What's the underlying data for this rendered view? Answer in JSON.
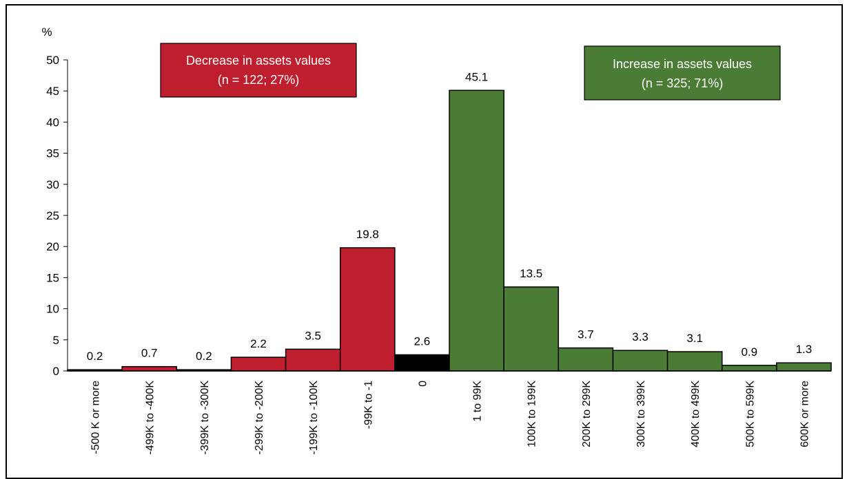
{
  "chart_data": {
    "type": "bar",
    "unit_label": "%",
    "ylim": [
      0,
      50
    ],
    "y_ticks": [
      0,
      5,
      10,
      15,
      20,
      25,
      30,
      35,
      40,
      45,
      50
    ],
    "grid": false,
    "categories": [
      "-500 K or more",
      "-499K to -400K",
      "-399K to -300K",
      "-299K to -200K",
      "-199K to -100K",
      "-99K to -1",
      "0",
      "1 to 99K",
      "100K to 199K",
      "200K to 299K",
      "300K to 399K",
      "400K to 499K",
      "500K to 599K",
      "600K or more"
    ],
    "values": [
      0.2,
      0.7,
      0.2,
      2.2,
      3.5,
      19.8,
      2.6,
      45.1,
      13.5,
      3.7,
      3.3,
      3.1,
      0.9,
      1.3
    ],
    "value_labels": [
      "0.2",
      "0.7",
      "0.2",
      "2.2",
      "3.5",
      "19.8",
      "2.6",
      "45.1",
      "13.5",
      "3.7",
      "3.3",
      "3.1",
      "0.9",
      "1.3"
    ],
    "bar_groups": [
      "decrease",
      "decrease",
      "decrease",
      "decrease",
      "decrease",
      "decrease",
      "zero",
      "increase",
      "increase",
      "increase",
      "increase",
      "increase",
      "increase",
      "increase"
    ],
    "colors": {
      "decrease": "#be1e2d",
      "zero": "#000000",
      "increase": "#4a7c35",
      "text": "#000000"
    },
    "annotations": [
      {
        "group": "decrease",
        "line1": "Decrease in assets values",
        "line2": "(n = 122; 27%)"
      },
      {
        "group": "increase",
        "line1": "Increase in assets values",
        "line2": "(n = 325; 71%)"
      }
    ]
  }
}
